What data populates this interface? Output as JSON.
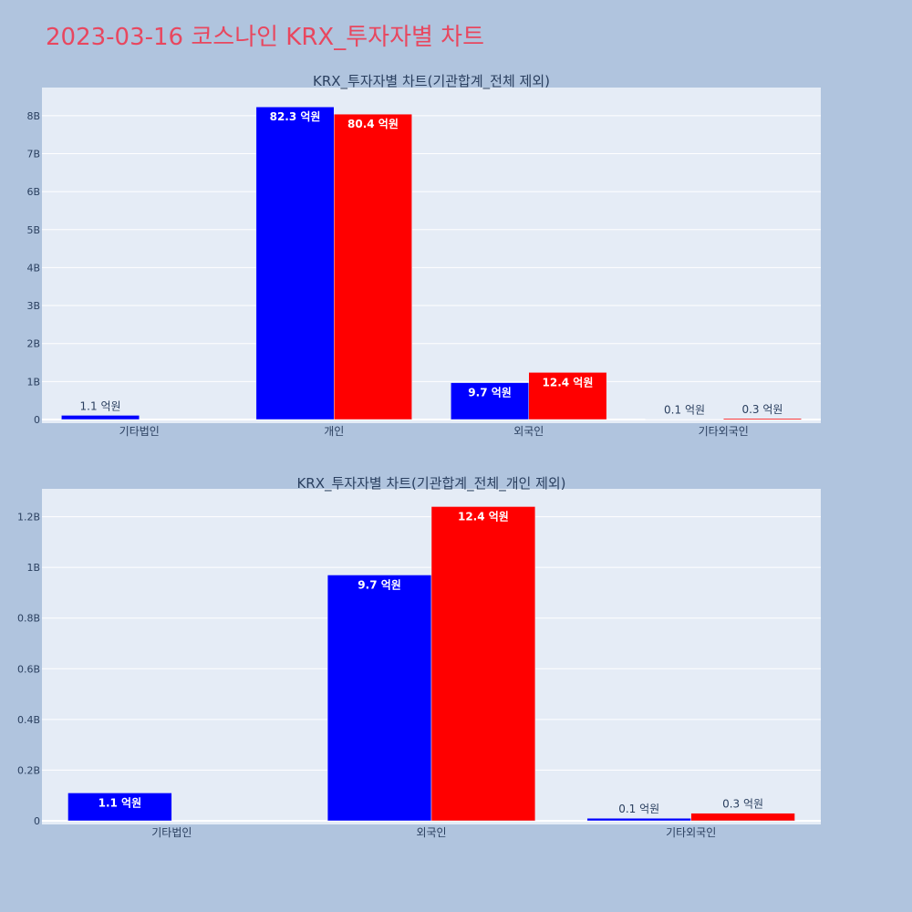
{
  "page": {
    "title": "2023-03-16 코스나인 KRX_투자자별 차트"
  },
  "chart_data": [
    {
      "type": "bar",
      "title": "KRX_투자자별 차트(기관합계_전체 제외)",
      "categories": [
        "기타법인",
        "개인",
        "외국인",
        "기타외국인"
      ],
      "series": [
        {
          "color": "#0000ff",
          "values": [
            110000000,
            8230000000,
            970000000,
            10000000
          ],
          "labels": [
            "1.1 억원",
            "82.3 억원",
            "9.7 억원",
            "0.1 억원"
          ]
        },
        {
          "color": "#ff0000",
          "values": [
            0,
            8040000000,
            1240000000,
            30000000
          ],
          "labels": [
            "",
            "80.4 억원",
            "12.4 억원",
            "0.3 억원"
          ]
        }
      ],
      "yticks": [
        0,
        1000000000,
        2000000000,
        3000000000,
        4000000000,
        5000000000,
        6000000000,
        7000000000,
        8000000000
      ],
      "yticklabels": [
        "0",
        "1B",
        "2B",
        "3B",
        "4B",
        "5B",
        "6B",
        "7B",
        "8B"
      ],
      "ylim": [
        0,
        8740000000
      ],
      "grid": true
    },
    {
      "type": "bar",
      "title": "KRX_투자자별 차트(기관합계_전체_개인 제외)",
      "categories": [
        "기타법인",
        "외국인",
        "기타외국인"
      ],
      "series": [
        {
          "color": "#0000ff",
          "values": [
            110000000,
            970000000,
            10000000
          ],
          "labels": [
            "1.1 억원",
            "9.7 억원",
            "0.1 억원"
          ]
        },
        {
          "color": "#ff0000",
          "values": [
            0,
            1240000000,
            30000000
          ],
          "labels": [
            "",
            "12.4 억원",
            "0.3 억원"
          ]
        }
      ],
      "yticks": [
        0,
        200000000,
        400000000,
        600000000,
        800000000,
        1000000000,
        1200000000
      ],
      "yticklabels": [
        "0",
        "0.2B",
        "0.4B",
        "0.6B",
        "0.8B",
        "1B",
        "1.2B"
      ],
      "ylim": [
        0,
        1310000000
      ],
      "grid": true
    }
  ]
}
